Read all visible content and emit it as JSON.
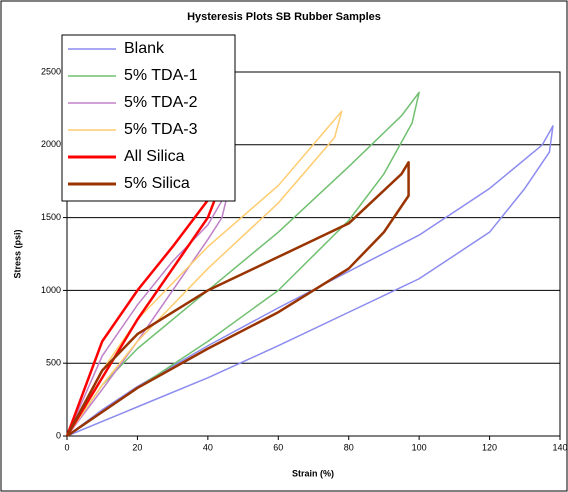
{
  "chart_data": {
    "type": "line",
    "title": "Hysteresis Plots SB Rubber Samples",
    "xlabel": "Strain (%)",
    "ylabel": "Stress (psi)",
    "xlim": [
      0,
      140
    ],
    "ylim": [
      0,
      2500
    ],
    "xticks": [
      0,
      20,
      40,
      60,
      80,
      100,
      120,
      140
    ],
    "yticks": [
      0,
      500,
      1000,
      1500,
      2000,
      2500
    ],
    "grid": true,
    "legend": "upper left",
    "series": [
      {
        "name": "Blank",
        "color": "#8c8cf0",
        "x": [
          0,
          10,
          20,
          40,
          60,
          80,
          100,
          120,
          135,
          138,
          137,
          130,
          120,
          100,
          80,
          60,
          40,
          20,
          10,
          0
        ],
        "values": [
          0,
          180,
          340,
          620,
          880,
          1130,
          1380,
          1700,
          2000,
          2130,
          1950,
          1700,
          1400,
          1080,
          850,
          620,
          400,
          200,
          100,
          0
        ]
      },
      {
        "name": "5% TDA-1",
        "color": "#70c070",
        "x": [
          0,
          10,
          20,
          40,
          60,
          80,
          95,
          100,
          98,
          90,
          80,
          60,
          40,
          20,
          0
        ],
        "values": [
          0,
          350,
          600,
          1000,
          1400,
          1850,
          2200,
          2360,
          2150,
          1800,
          1480,
          1000,
          650,
          330,
          0
        ]
      },
      {
        "name": "5% TDA-2",
        "color": "#c080c8",
        "x": [
          0,
          10,
          20,
          30,
          40,
          46,
          44,
          40,
          30,
          20,
          10,
          0
        ],
        "values": [
          0,
          550,
          900,
          1200,
          1450,
          1700,
          1500,
          1350,
          1000,
          650,
          320,
          0
        ]
      },
      {
        "name": "5% TDA-3",
        "color": "#ffcc70",
        "x": [
          0,
          10,
          20,
          40,
          60,
          78,
          76,
          60,
          40,
          20,
          10,
          0
        ],
        "values": [
          0,
          450,
          800,
          1300,
          1720,
          2230,
          2050,
          1600,
          1150,
          650,
          350,
          0
        ]
      },
      {
        "name": "All Silica",
        "color": "#ff0000",
        "x": [
          0,
          10,
          20,
          30,
          40,
          45,
          44,
          40,
          30,
          20,
          10,
          0
        ],
        "values": [
          0,
          650,
          1000,
          1300,
          1620,
          1830,
          1750,
          1500,
          1150,
          800,
          400,
          0
        ]
      },
      {
        "name": "5% Silica",
        "color": "#993300",
        "x": [
          0,
          10,
          20,
          40,
          60,
          80,
          95,
          97,
          97,
          90,
          80,
          60,
          40,
          20,
          0
        ],
        "values": [
          0,
          450,
          700,
          1000,
          1230,
          1460,
          1800,
          1880,
          1650,
          1400,
          1150,
          850,
          600,
          330,
          0
        ]
      }
    ]
  }
}
